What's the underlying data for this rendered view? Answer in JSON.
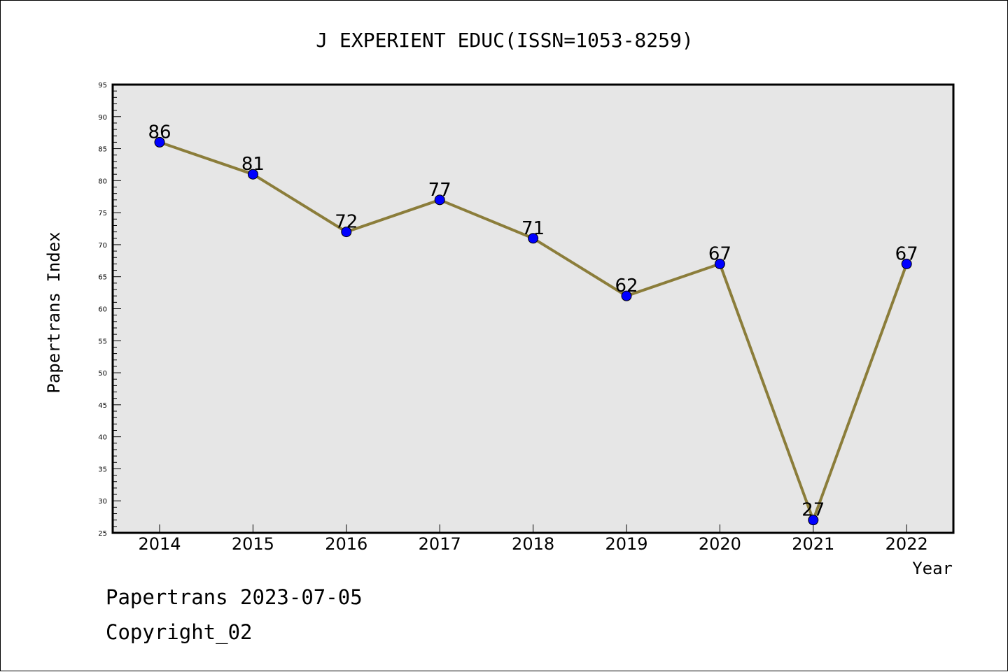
{
  "chart_data": {
    "type": "line",
    "title": "J EXPERIENT EDUC(ISSN=1053-8259)",
    "xlabel": "Year",
    "ylabel": "Papertrans Index",
    "categories": [
      "2014",
      "2015",
      "2016",
      "2017",
      "2018",
      "2019",
      "2020",
      "2021",
      "2022"
    ],
    "series": [
      {
        "values": [
          86,
          81,
          72,
          77,
          71,
          62,
          67,
          27,
          67
        ]
      }
    ],
    "ylim": [
      25,
      95
    ],
    "yticks": [
      25,
      30,
      35,
      40,
      45,
      50,
      55,
      60,
      65,
      70,
      75,
      80,
      85,
      90,
      95
    ],
    "grid": false,
    "data_labels": true,
    "colors": {
      "line": "#8b7d3a",
      "marker": "#0000ff",
      "plot_background": "#e6e6e6"
    }
  },
  "footer": {
    "line1": "Papertrans 2023-07-05",
    "line2": "Copyright_02"
  }
}
